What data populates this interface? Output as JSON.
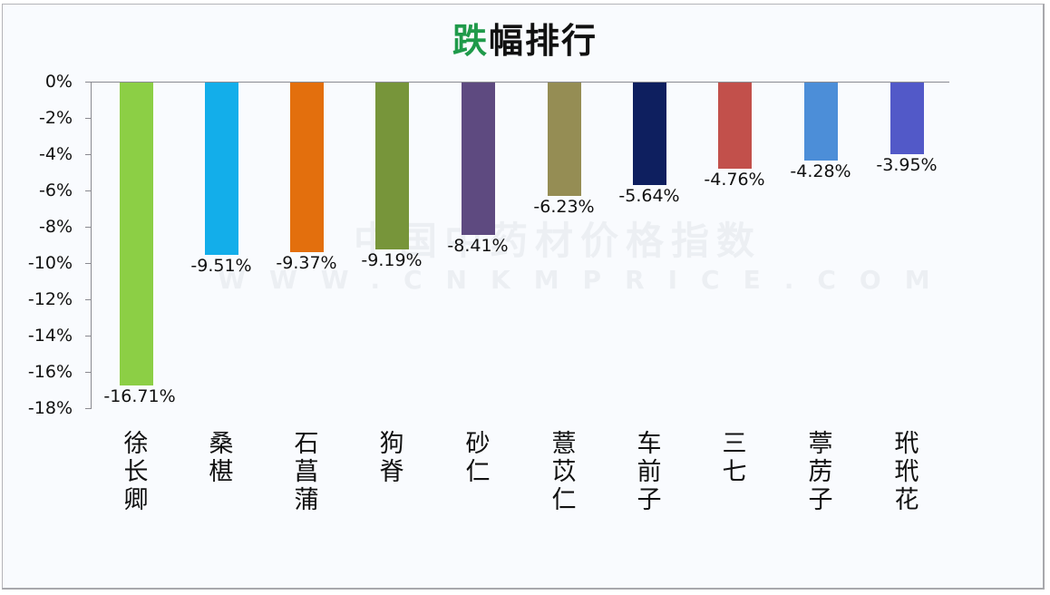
{
  "title": {
    "accent": "跌",
    "rest": "幅排行"
  },
  "watermark": {
    "cn": "中国中药材价格指数",
    "en": "WWW.CNKMPRICE.COM"
  },
  "colors": {
    "bars": [
      "#8ccf45",
      "#13aeea",
      "#e36f0d",
      "#77953a",
      "#5e4a80",
      "#958d54",
      "#0e1f5f",
      "#c2504b",
      "#4c8ed8",
      "#5259c8"
    ],
    "axis": "#8a8a90",
    "title_accent": "#1f9a4a"
  },
  "y_axis": {
    "ticks": [
      "0%",
      "-2%",
      "-4%",
      "-6%",
      "-8%",
      "-10%",
      "-12%",
      "-14%",
      "-16%",
      "-18%"
    ]
  },
  "bars": [
    {
      "name": "徐长卿",
      "value": -16.71,
      "label": "-16.71%"
    },
    {
      "name": "桑椹",
      "value": -9.51,
      "label": "-9.51%"
    },
    {
      "name": "石菖蒲",
      "value": -9.37,
      "label": "-9.37%"
    },
    {
      "name": "狗脊",
      "value": -9.19,
      "label": "-9.19%"
    },
    {
      "name": "砂仁",
      "value": -8.41,
      "label": "-8.41%"
    },
    {
      "name": "薏苡仁",
      "value": -6.23,
      "label": "-6.23%"
    },
    {
      "name": "车前子",
      "value": -5.64,
      "label": "-5.64%"
    },
    {
      "name": "三七",
      "value": -4.76,
      "label": "-4.76%"
    },
    {
      "name": "葶苈子",
      "value": -4.28,
      "label": "-4.28%"
    },
    {
      "name": "玳玳花",
      "value": -3.95,
      "label": "-3.95%"
    }
  ],
  "chart_data": {
    "type": "bar",
    "title": "跌幅排行",
    "categories": [
      "徐长卿",
      "桑椹",
      "石菖蒲",
      "狗脊",
      "砂仁",
      "薏苡仁",
      "车前子",
      "三七",
      "葶苈子",
      "玳玳花"
    ],
    "values": [
      -16.71,
      -9.51,
      -9.37,
      -9.19,
      -8.41,
      -6.23,
      -5.64,
      -4.76,
      -4.28,
      -3.95
    ],
    "data_labels": [
      "-16.71%",
      "-9.51%",
      "-9.37%",
      "-9.19%",
      "-8.41%",
      "-6.23%",
      "-5.64%",
      "-4.76%",
      "-4.28%",
      "-3.95%"
    ],
    "xlabel": "",
    "ylabel": "",
    "ylim": [
      -18,
      0
    ],
    "yticks": [
      0,
      -2,
      -4,
      -6,
      -8,
      -10,
      -12,
      -14,
      -16,
      -18
    ],
    "ytick_format": "percent",
    "grid": false,
    "legend": null,
    "colors": [
      "#8ccf45",
      "#13aeea",
      "#e36f0d",
      "#77953a",
      "#5e4a80",
      "#958d54",
      "#0e1f5f",
      "#c2504b",
      "#4c8ed8",
      "#5259c8"
    ]
  }
}
